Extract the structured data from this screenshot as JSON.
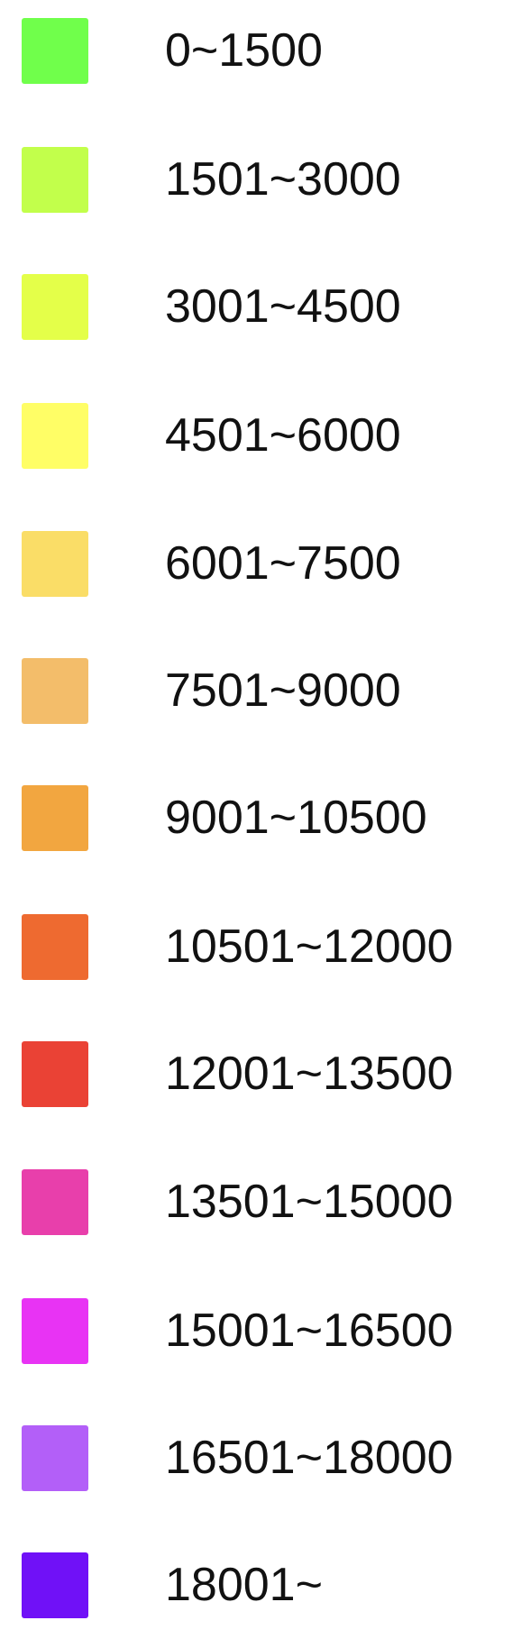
{
  "legend": {
    "items": [
      {
        "label": "0~1500",
        "color": "#70ff4b"
      },
      {
        "label": "1501~3000",
        "color": "#c2ff4b"
      },
      {
        "label": "3001~4500",
        "color": "#e4ff49"
      },
      {
        "label": "4501~6000",
        "color": "#fffe66"
      },
      {
        "label": "6001~7500",
        "color": "#fadd67"
      },
      {
        "label": "7501~9000",
        "color": "#f3bd6a"
      },
      {
        "label": "9001~10500",
        "color": "#f2a640"
      },
      {
        "label": "10501~12000",
        "color": "#ee6a30"
      },
      {
        "label": "12001~13500",
        "color": "#ea4235"
      },
      {
        "label": "13501~15000",
        "color": "#e83fab"
      },
      {
        "label": "15001~16500",
        "color": "#e833f4"
      },
      {
        "label": "16501~18000",
        "color": "#b35ff8"
      },
      {
        "label": "18001~",
        "color": "#7011f7"
      }
    ]
  }
}
